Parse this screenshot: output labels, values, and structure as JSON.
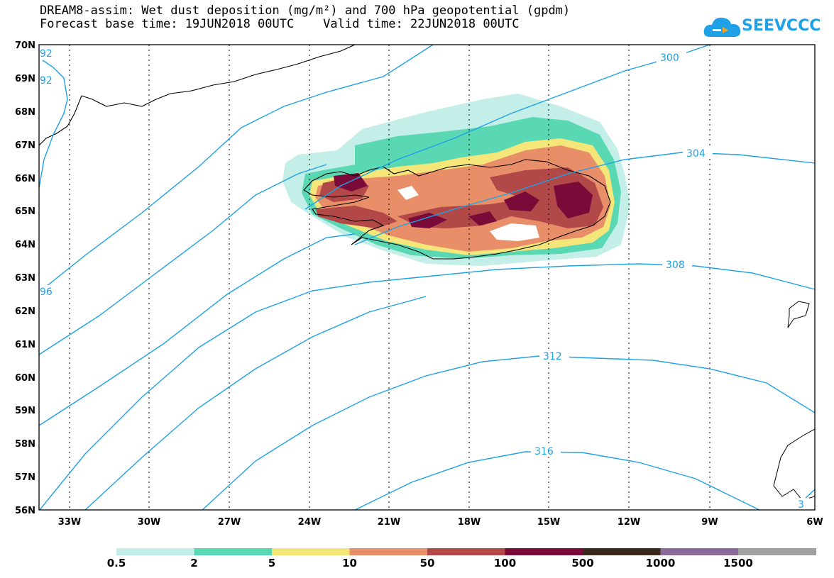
{
  "title": {
    "line1": "DREAM8-assim: Wet dust deposition (mg/m²) and 700 hPa geopotential (gpdm)",
    "line2": "Forecast base time: 19JUN2018 00UTC    Valid time: 22JUN2018 00UTC"
  },
  "logo": {
    "text": "SEEVCCC",
    "icon": "cloud-icon"
  },
  "axes": {
    "lat_labels": [
      "70N",
      "69N",
      "68N",
      "67N",
      "66N",
      "65N",
      "64N",
      "63N",
      "62N",
      "61N",
      "60N",
      "59N",
      "58N",
      "57N",
      "56N"
    ],
    "lon_labels": [
      "33W",
      "30W",
      "27W",
      "24W",
      "21W",
      "18W",
      "15W",
      "12W",
      "9W",
      "6W"
    ]
  },
  "contours": {
    "labels": [
      "300",
      "304",
      "308",
      "312",
      "316",
      "92",
      "92",
      "96",
      "3"
    ]
  },
  "colorbar": {
    "colors": [
      "#c4efe8",
      "#5ad8b4",
      "#f5e67a",
      "#e88f6a",
      "#b34848",
      "#7a0a38",
      "#3b2a1a",
      "#8a6a98",
      "#a0a0a0"
    ],
    "labels": [
      "0.5",
      "2",
      "5",
      "10",
      "50",
      "100",
      "500",
      "1000",
      "1500"
    ]
  },
  "colors": {
    "contour": "#1ea1e6"
  }
}
